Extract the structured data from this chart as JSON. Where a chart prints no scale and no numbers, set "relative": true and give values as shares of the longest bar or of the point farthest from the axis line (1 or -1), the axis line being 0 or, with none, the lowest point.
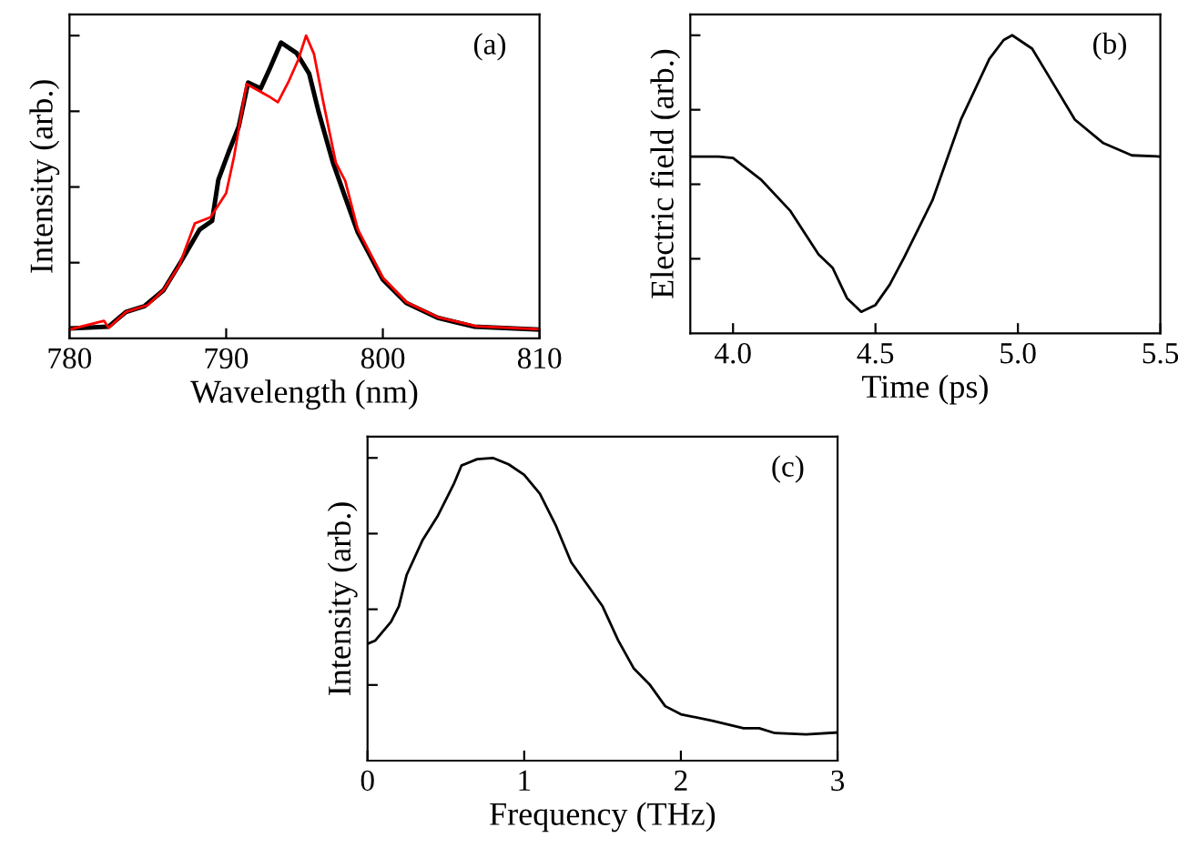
{
  "chart_data": [
    {
      "type": "line",
      "relative": true,
      "xlabel": "Wavelength (nm)",
      "ylabel": "Intensity (arb.)",
      "annotations": [
        "(a)"
      ],
      "xlim": [
        780,
        810
      ],
      "xticks": [
        780,
        790,
        800,
        810
      ],
      "tick_labels": "x",
      "grid": false,
      "legend": false,
      "series": [
        {
          "color": "#000000",
          "x": [
            780,
            782.5,
            783.6,
            784.8,
            786,
            787.1,
            788.3,
            789.1,
            789.5,
            790.2,
            790.8,
            791.4,
            792.2,
            792.8,
            793.5,
            794.5,
            795.3,
            795.9,
            796.8,
            797.6,
            798.4,
            800,
            801.5,
            803.5,
            805.8,
            810
          ],
          "values": [
            0.033,
            0.039,
            0.087,
            0.107,
            0.159,
            0.252,
            0.359,
            0.388,
            0.524,
            0.621,
            0.699,
            0.845,
            0.825,
            0.893,
            0.977,
            0.942,
            0.874,
            0.748,
            0.583,
            0.466,
            0.35,
            0.194,
            0.117,
            0.068,
            0.039,
            0.029
          ]
        },
        {
          "color": "#ff0000",
          "x": [
            780,
            782.2,
            782.5,
            783.6,
            785,
            786,
            787,
            788,
            789,
            790,
            790.5,
            791.3,
            792,
            792.7,
            793.3,
            794,
            794.6,
            795.1,
            795.6,
            796.2,
            797,
            797.6,
            798.4,
            800,
            801.5,
            803.5,
            806,
            810
          ],
          "values": [
            0.029,
            0.058,
            0.035,
            0.087,
            0.11,
            0.16,
            0.24,
            0.38,
            0.4,
            0.48,
            0.6,
            0.84,
            0.82,
            0.8,
            0.78,
            0.85,
            0.92,
            1.0,
            0.94,
            0.78,
            0.58,
            0.52,
            0.36,
            0.2,
            0.12,
            0.07,
            0.04,
            0.03
          ]
        }
      ]
    },
    {
      "type": "line",
      "relative": true,
      "xlabel": "Time (ps)",
      "ylabel": "Electric field (arb.)",
      "annotations": [
        "(b)"
      ],
      "xlim": [
        3.85,
        5.5
      ],
      "xticks": [
        {
          "value": 4,
          "label": "4.0"
        },
        4.5,
        {
          "value": 5,
          "label": "5.0"
        },
        5.5
      ],
      "tick_labels": "x",
      "grid": false,
      "legend": false,
      "series": [
        {
          "color": "#000000",
          "x": [
            3.85,
            3.95,
            4.0,
            4.1,
            4.2,
            4.3,
            4.35,
            4.4,
            4.45,
            4.5,
            4.55,
            4.6,
            4.7,
            4.8,
            4.9,
            4.95,
            4.98,
            5.05,
            5.1,
            5.2,
            5.3,
            5.4,
            5.5
          ],
          "values": [
            0.593,
            0.593,
            0.588,
            0.514,
            0.412,
            0.265,
            0.219,
            0.118,
            0.072,
            0.095,
            0.163,
            0.253,
            0.446,
            0.717,
            0.921,
            0.984,
            1.0,
            0.955,
            0.876,
            0.717,
            0.638,
            0.597,
            0.593
          ]
        }
      ]
    },
    {
      "type": "line",
      "relative": true,
      "xlabel": "Frequency (THz)",
      "ylabel": "Intensity (arb.)",
      "annotations": [
        "(c)"
      ],
      "xlim": [
        0,
        3
      ],
      "xticks": [
        0,
        1,
        2,
        3
      ],
      "tick_labels": "x",
      "grid": false,
      "legend": false,
      "series": [
        {
          "color": "#000000",
          "x": [
            0,
            0.05,
            0.15,
            0.2,
            0.25,
            0.35,
            0.45,
            0.55,
            0.6,
            0.7,
            0.8,
            0.9,
            1.0,
            1.1,
            1.2,
            1.3,
            1.4,
            1.5,
            1.6,
            1.7,
            1.8,
            1.9,
            2.0,
            2.2,
            2.4,
            2.5,
            2.6,
            2.8,
            3.0
          ],
          "values": [
            0.386,
            0.397,
            0.459,
            0.51,
            0.614,
            0.727,
            0.81,
            0.913,
            0.975,
            0.996,
            1.0,
            0.979,
            0.944,
            0.882,
            0.779,
            0.655,
            0.583,
            0.51,
            0.397,
            0.304,
            0.252,
            0.18,
            0.153,
            0.132,
            0.107,
            0.107,
            0.091,
            0.087,
            0.093
          ]
        }
      ]
    }
  ]
}
